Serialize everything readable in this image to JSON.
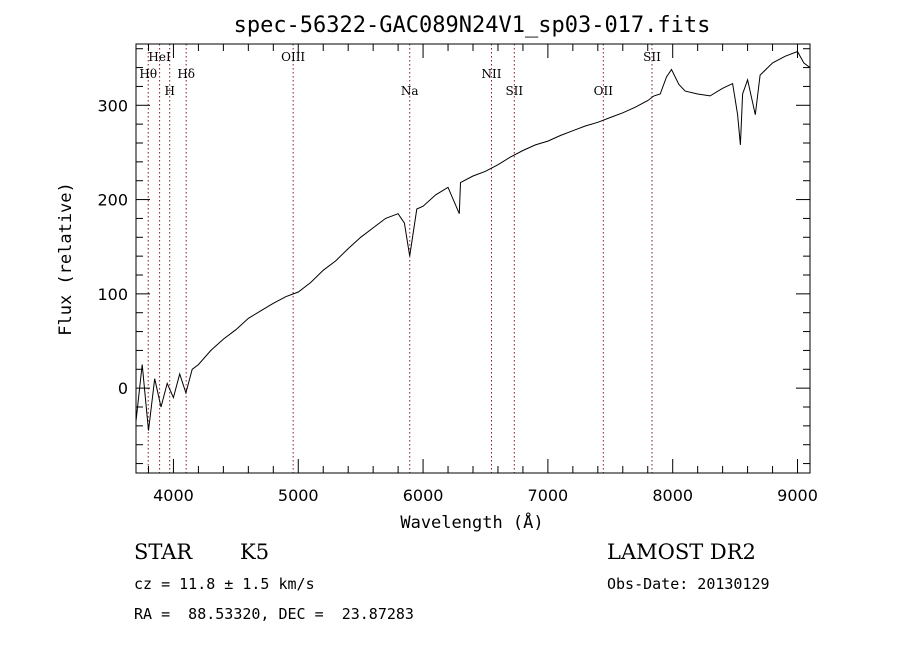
{
  "chart_data": {
    "type": "line",
    "title": "spec-56322-GAC089N24V1_sp03-017.fits",
    "xlabel": "Wavelength (Å)",
    "ylabel": "Flux (relative)",
    "xlim": [
      3700,
      9100
    ],
    "ylim": [
      -90,
      365
    ],
    "x_ticks": [
      4000,
      5000,
      6000,
      7000,
      8000,
      9000
    ],
    "y_ticks": [
      0,
      100,
      200,
      300
    ],
    "series": [
      {
        "x": [
          3700,
          3750,
          3800,
          3850,
          3900,
          3950,
          4000,
          4050,
          4100,
          4150,
          4200,
          4300,
          4400,
          4500,
          4600,
          4700,
          4800,
          4900,
          5000,
          5100,
          5200,
          5300,
          5400,
          5500,
          5600,
          5700,
          5800,
          5850,
          5893,
          5950,
          6000,
          6100,
          6200,
          6290,
          6300,
          6400,
          6500,
          6600,
          6700,
          6800,
          6900,
          7000,
          7100,
          7200,
          7300,
          7400,
          7500,
          7600,
          7700,
          7800,
          7850,
          7900,
          7950,
          7990,
          8050,
          8100,
          8200,
          8300,
          8400,
          8480,
          8498,
          8520,
          8542,
          8560,
          8600,
          8662,
          8700,
          8800,
          8900,
          9000,
          9050,
          9100
        ],
        "y": [
          -35,
          25,
          -45,
          10,
          -20,
          5,
          -10,
          15,
          -5,
          20,
          25,
          40,
          52,
          62,
          74,
          82,
          90,
          97,
          102,
          112,
          125,
          135,
          148,
          160,
          170,
          180,
          185,
          175,
          140,
          190,
          193,
          205,
          213,
          185,
          218,
          225,
          230,
          237,
          245,
          252,
          258,
          262,
          268,
          273,
          278,
          282,
          287,
          292,
          298,
          305,
          310,
          312,
          330,
          338,
          322,
          315,
          312,
          310,
          318,
          323,
          308,
          290,
          258,
          312,
          327,
          290,
          332,
          345,
          352,
          357,
          345,
          340
        ]
      }
    ],
    "spectral_lines": [
      {
        "name": "Hθ",
        "wavelength": 3798,
        "row": 2
      },
      {
        "name": "HeI",
        "wavelength": 3889,
        "row": 1
      },
      {
        "name": "H",
        "wavelength": 3970,
        "row": 3
      },
      {
        "name": "Hδ",
        "wavelength": 4102,
        "row": 2
      },
      {
        "name": "OIII",
        "wavelength": 4959,
        "row": 1
      },
      {
        "name": "Na",
        "wavelength": 5893,
        "row": 3
      },
      {
        "name": "NII",
        "wavelength": 6548,
        "row": 2
      },
      {
        "name": "SII",
        "wavelength": 6731,
        "row": 3
      },
      {
        "name": "OII",
        "wavelength": 7444,
        "row": 3
      },
      {
        "name": "SII",
        "wavelength": 7834,
        "row": 1
      }
    ],
    "grid": false,
    "legend": "none"
  },
  "info": {
    "object_class": "STAR",
    "subclass": "K5",
    "survey": "LAMOST DR2",
    "redshift": "cz = 11.8 ± 1.5 km/s",
    "obs_date": "Obs-Date: 20130129",
    "coords": "RA =  88.53320, DEC =  23.87283"
  },
  "colors": {
    "line_marker": "#8b1a1a",
    "spectrum": "#000000",
    "axes": "#000000"
  }
}
